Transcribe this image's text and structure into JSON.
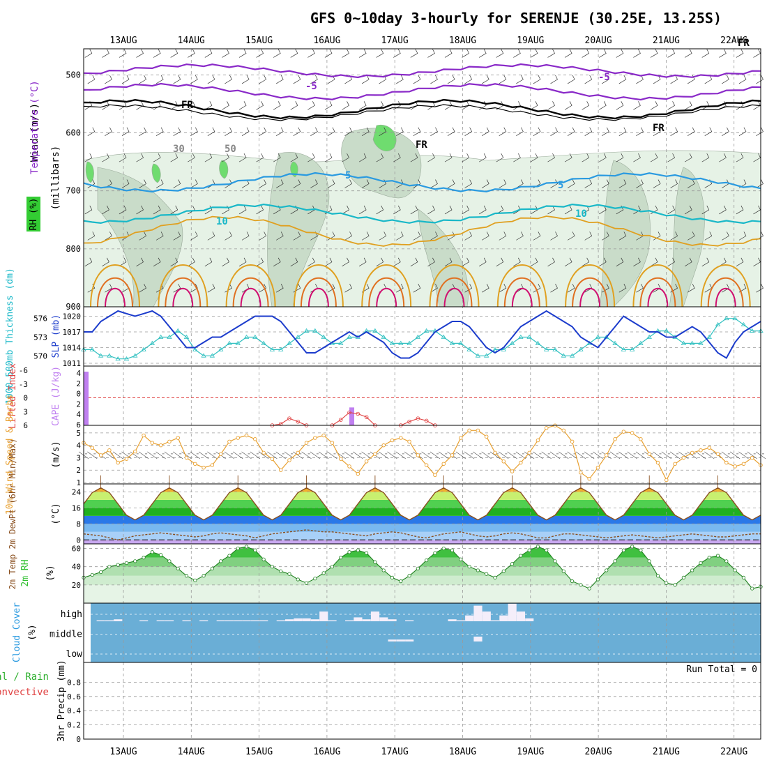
{
  "title": "GFS 0~10day 3-hourly for SERENJE (30.25E, 13.25S)",
  "dates": [
    "13AUG",
    "14AUG",
    "15AUG",
    "16AUG",
    "17AUG",
    "18AUG",
    "19AUG",
    "20AUG",
    "21AUG",
    "22AUG"
  ],
  "colors": {
    "purple": "#8a2ac8",
    "cyan": "#1ab8c8",
    "blue_iso": "#2a9ae0",
    "orange": "#e0a020",
    "dorange": "#e07020",
    "magenta": "#d01070",
    "slp": "#1c3ccc",
    "thk": "#30c0c0",
    "wind": "#e8a030",
    "cape": "#c080f0",
    "li": "#e04040",
    "cloud": "#6aaed6",
    "rh_green": "#30c030",
    "temp_brown": "#8a5020"
  },
  "panels": {
    "upper": {
      "ylabel_rh": "RH (%)",
      "ylabel_temp": "Temperature (°C)",
      "ylabel_wind": "Wind (m/s)",
      "ylabel_mb": "(millibars)",
      "ticks": [
        "500",
        "600",
        "700",
        "800",
        "900"
      ],
      "contour_labels": [
        "FR",
        "FR",
        "FR",
        "FR",
        "-5",
        "-5",
        "5",
        "5",
        "10",
        "10",
        "30",
        "50"
      ]
    },
    "slp": {
      "ylabel_thk": "1000-500mb Thickness (dm)",
      "ylabel_slp": "SLP (mb)",
      "thk_ticks": [
        "576",
        "573",
        "570"
      ],
      "slp_ticks": [
        "1020",
        "1017",
        "1014",
        "1011"
      ]
    },
    "li": {
      "ylabel_li": "Lifted Index",
      "ylabel_cape": "CAPE (J/kg)",
      "li_ticks": [
        "-6",
        "-3",
        "0",
        "3",
        "6"
      ],
      "cape_ticks": [
        "4",
        "2",
        "0",
        "2",
        "4",
        "6"
      ]
    },
    "wind": {
      "ylabel": "10m Wind Speed & Barbs",
      "units": "(m/s)",
      "ticks": [
        "5",
        "4",
        "3",
        "2",
        "1"
      ]
    },
    "temp": {
      "ylabel": "2m Temp 2m DewPt (6hr Min/Max)",
      "units": "(°C)",
      "ticks": [
        "24",
        "16",
        "8",
        "0"
      ]
    },
    "rh": {
      "ylabel": "2m RH",
      "units": "(%)",
      "ticks": [
        "60",
        "40",
        "20"
      ]
    },
    "cloud": {
      "ylabel": "Cloud Cover",
      "units": "(%)",
      "levels": [
        "high",
        "middle",
        "low"
      ]
    },
    "precip": {
      "ylabel": "3hr Precip (mm)",
      "ylabel_total": "Total / Rain",
      "ylabel_conv": "Convective",
      "run_total": "Run Total = 0",
      "ticks": [
        "0.8",
        "0.6",
        "0.4",
        "0.2",
        "0"
      ]
    }
  },
  "chart_data": [
    {
      "type": "line",
      "title": "1000-500mb Thickness (dm) and SLP (mb)",
      "x": "3-hourly steps from 12 AUG 12Z (0..79)",
      "series": [
        {
          "name": "SLP (mb)",
          "axis": "slp",
          "ylim": [
            1011,
            1021
          ],
          "values": [
            1017,
            1017,
            1019,
            1020,
            1021,
            1020.5,
            1020,
            1020.5,
            1021,
            1020,
            1018,
            1016,
            1014,
            1014,
            1015,
            1016,
            1016,
            1017,
            1018,
            1019,
            1020,
            1020,
            1020,
            1019,
            1017,
            1015,
            1013,
            1013,
            1014,
            1015,
            1016,
            1017,
            1016,
            1017,
            1016,
            1015,
            1013,
            1012,
            1012,
            1013,
            1015,
            1017,
            1018,
            1019,
            1019,
            1018,
            1016,
            1014,
            1013,
            1014,
            1016,
            1018,
            1019,
            1020,
            1021,
            1020,
            1019,
            1018,
            1016,
            1015,
            1014,
            1016,
            1018,
            1020,
            1019,
            1018,
            1017,
            1017,
            1016,
            1016,
            1017,
            1018,
            1017,
            1015,
            1013,
            1012,
            1015,
            1017,
            1018,
            1019
          ]
        },
        {
          "name": "1000-500mb Thickness (dm)",
          "axis": "thk",
          "ylim": [
            568.8,
            577.2
          ],
          "values": [
            571,
            571,
            570,
            570,
            569.5,
            569.5,
            570,
            571,
            572,
            573,
            573,
            574,
            573,
            571,
            570,
            570,
            571,
            572,
            572,
            573,
            573,
            572,
            571,
            571,
            572,
            573,
            574,
            574,
            573,
            572,
            572,
            573,
            573,
            574,
            574,
            573,
            572,
            572,
            572,
            573,
            574,
            574,
            573,
            572,
            572,
            571,
            570,
            570,
            571,
            571,
            572,
            573,
            573,
            572,
            571,
            571,
            570,
            570,
            571,
            572,
            573,
            573,
            572,
            571,
            571,
            572,
            573,
            574,
            574,
            573,
            572,
            572,
            572,
            573,
            575,
            576,
            576,
            575,
            574,
            574
          ]
        }
      ]
    },
    {
      "type": "bar",
      "title": "Lifted Index / CAPE",
      "series": [
        {
          "name": "CAPE (J/kg)",
          "points": [
            {
              "t": 0,
              "v": 6
            },
            {
              "t": 31,
              "v": 2
            }
          ]
        },
        {
          "name": "Lifted Index",
          "ylim": [
            6,
            -6
          ],
          "segments": [
            [
              [
                22,
                6
              ],
              [
                23,
                5.7
              ],
              [
                24,
                4.5
              ],
              [
                25,
                5.2
              ],
              [
                26,
                6
              ]
            ],
            [
              [
                29,
                6
              ],
              [
                30,
                4.8
              ],
              [
                31,
                3.2
              ],
              [
                32,
                3.5
              ],
              [
                33,
                4.2
              ],
              [
                34,
                6
              ]
            ],
            [
              [
                37,
                6
              ],
              [
                38,
                5.2
              ],
              [
                39,
                4.5
              ],
              [
                40,
                5
              ],
              [
                41,
                6
              ]
            ]
          ]
        }
      ]
    },
    {
      "type": "line",
      "title": "10m Wind Speed (m/s)",
      "ylim": [
        1,
        5.5
      ],
      "values": [
        4.2,
        3.8,
        3.2,
        3.6,
        2.6,
        2.9,
        3.5,
        4.8,
        4.2,
        4.0,
        4.3,
        4.6,
        3.0,
        2.5,
        2.2,
        2.4,
        3.3,
        4.3,
        4.6,
        4.8,
        4.5,
        3.4,
        2.9,
        2.0,
        2.8,
        3.4,
        4.2,
        4.6,
        4.8,
        4.2,
        2.9,
        2.3,
        1.7,
        2.7,
        3.3,
        4.0,
        4.4,
        4.6,
        4.3,
        3.2,
        2.4,
        1.6,
        2.5,
        3.2,
        4.6,
        5.2,
        5.2,
        4.7,
        3.4,
        2.7,
        1.9,
        2.6,
        3.4,
        4.4,
        5.4,
        5.6,
        5.2,
        4.3,
        1.8,
        1.3,
        2.2,
        3.2,
        4.5,
        5.1,
        5.0,
        4.5,
        3.3,
        2.6,
        1.2,
        2.5,
        3.0,
        3.4,
        3.6,
        3.8,
        3.3,
        2.6,
        2.3,
        2.5,
        3.0,
        2.4
      ]
    },
    {
      "type": "area",
      "title": "2m Temp / 2m DewPt (°C)",
      "ylim": [
        -2,
        28
      ],
      "series": [
        {
          "name": "2m Temp",
          "period": 8,
          "tmin": 10,
          "tmax": 26,
          "peak_offset": 2
        },
        {
          "name": "2m DewPt",
          "values": [
            3,
            2.5,
            2,
            1,
            0,
            1,
            2,
            2.5,
            3,
            3.5,
            3,
            2.5,
            2,
            1.5,
            2,
            3,
            3.5,
            3,
            2.5,
            2,
            1,
            2,
            3,
            3.5,
            4,
            4.5,
            5,
            4.5,
            4,
            4,
            3.5,
            3,
            2.5,
            2,
            3,
            3.5,
            4,
            3.5,
            2.5,
            1.5,
            1,
            2,
            3,
            3.5,
            4,
            3,
            2,
            1.5,
            2,
            3,
            3.5,
            3,
            2,
            1,
            1,
            2,
            3,
            3,
            2.5,
            2,
            1.5,
            1,
            1.5,
            2,
            2.5,
            2,
            1.5,
            1,
            1.5,
            2,
            2.5,
            3,
            2.5,
            2,
            1.5,
            1.5,
            2,
            2.5,
            3,
            3
          ]
        }
      ]
    },
    {
      "type": "area",
      "title": "2m RH (%)",
      "ylim": [
        0,
        65
      ],
      "values": [
        28,
        31,
        34,
        40,
        42,
        44,
        46,
        50,
        56,
        53,
        46,
        38,
        30,
        25,
        30,
        38,
        46,
        52,
        60,
        62,
        58,
        48,
        40,
        35,
        32,
        26,
        22,
        27,
        33,
        40,
        50,
        56,
        58,
        55,
        45,
        36,
        28,
        24,
        30,
        38,
        47,
        55,
        60,
        58,
        48,
        40,
        36,
        32,
        28,
        35,
        43,
        52,
        58,
        62,
        58,
        46,
        35,
        24,
        20,
        16,
        26,
        36,
        46,
        58,
        62,
        58,
        46,
        30,
        22,
        20,
        28,
        36,
        44,
        50,
        52,
        46,
        36,
        28,
        16,
        18
      ]
    },
    {
      "type": "bar",
      "title": "Cloud Cover (%)",
      "series": [
        {
          "name": "high",
          "values": [
            0,
            0,
            0.05,
            0.05,
            0.1,
            0,
            0,
            0.05,
            0,
            0.05,
            0.05,
            0,
            0.05,
            0,
            0.05,
            0,
            0.05,
            0.05,
            0.05,
            0.05,
            0.05,
            0.05,
            0,
            0.05,
            0.1,
            0.15,
            0.15,
            0.1,
            0.5,
            0.05,
            0,
            0.05,
            0.2,
            0.1,
            0.5,
            0.2,
            0.1,
            0,
            0.05,
            0,
            0,
            0,
            0,
            0.1,
            0.05,
            0.3,
            0.8,
            0.5,
            0.05,
            0.3,
            0.9,
            0.5,
            0.15,
            0,
            0,
            0,
            0,
            0,
            0,
            0,
            0,
            0,
            0,
            0,
            0,
            0,
            0,
            0,
            0,
            0,
            0,
            0,
            0,
            0,
            0,
            0,
            0,
            0,
            0,
            0
          ]
        },
        {
          "name": "middle",
          "values": [
            0,
            0,
            0,
            0,
            0,
            0,
            0,
            0,
            0,
            0,
            0,
            0,
            0,
            0,
            0,
            0,
            0,
            0,
            0,
            0,
            0,
            0,
            0,
            0,
            0,
            0,
            0,
            0,
            0,
            0,
            0,
            0,
            0,
            0,
            0,
            0,
            0.1,
            0.1,
            0.1,
            0,
            0,
            0,
            0,
            0,
            0,
            0,
            0.25,
            0,
            0,
            0,
            0,
            0,
            0,
            0,
            0,
            0,
            0,
            0,
            0,
            0,
            0,
            0,
            0,
            0,
            0,
            0,
            0,
            0,
            0,
            0,
            0,
            0,
            0,
            0,
            0,
            0,
            0,
            0,
            0,
            0
          ]
        },
        {
          "name": "low",
          "values": [
            0,
            0,
            0,
            0,
            0,
            0,
            0,
            0,
            0,
            0,
            0,
            0,
            0,
            0,
            0,
            0,
            0,
            0,
            0,
            0,
            0,
            0,
            0,
            0,
            0,
            0,
            0,
            0,
            0,
            0,
            0,
            0,
            0,
            0,
            0,
            0,
            0,
            0,
            0,
            0,
            0,
            0,
            0,
            0,
            0,
            0,
            0,
            0,
            0,
            0,
            0,
            0,
            0,
            0,
            0,
            0,
            0,
            0,
            0,
            0,
            0,
            0,
            0,
            0,
            0,
            0,
            0,
            0,
            0,
            0,
            0,
            0,
            0,
            0,
            0,
            0,
            0,
            0,
            0,
            0
          ]
        }
      ]
    },
    {
      "type": "bar",
      "title": "3hr Precip (mm)",
      "ylim": [
        0,
        1
      ],
      "values": [
        0,
        0,
        0,
        0,
        0,
        0,
        0,
        0,
        0,
        0,
        0,
        0,
        0,
        0,
        0,
        0,
        0,
        0,
        0,
        0,
        0,
        0,
        0,
        0,
        0,
        0,
        0,
        0,
        0,
        0,
        0,
        0,
        0,
        0,
        0,
        0,
        0,
        0,
        0,
        0,
        0,
        0,
        0,
        0,
        0,
        0,
        0,
        0,
        0,
        0,
        0,
        0,
        0,
        0,
        0,
        0,
        0,
        0,
        0,
        0,
        0,
        0,
        0,
        0,
        0,
        0,
        0,
        0,
        0,
        0,
        0,
        0,
        0,
        0,
        0,
        0,
        0,
        0,
        0,
        0
      ]
    }
  ]
}
